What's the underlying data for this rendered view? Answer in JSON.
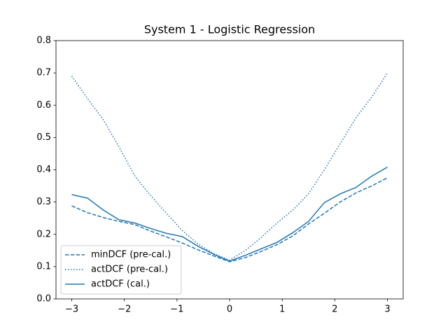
{
  "chart_data": {
    "type": "line",
    "title": "System 1 - Logistic Regression",
    "x": [
      -3,
      -2.7,
      -2.4,
      -2.1,
      -1.8,
      -1.5,
      -1.2,
      -0.9,
      -0.6,
      -0.3,
      0,
      0.3,
      0.6,
      0.9,
      1.2,
      1.5,
      1.8,
      2.1,
      2.4,
      2.7,
      3
    ],
    "series": [
      {
        "name": "minDCF (pre-cal.)",
        "color": "#1f77b4",
        "dash": "dashed",
        "values": [
          0.288,
          0.267,
          0.252,
          0.24,
          0.23,
          0.21,
          0.192,
          0.173,
          0.152,
          0.133,
          0.115,
          0.128,
          0.147,
          0.168,
          0.195,
          0.232,
          0.265,
          0.3,
          0.328,
          0.35,
          0.375
        ]
      },
      {
        "name": "actDCF (pre-cal.)",
        "color": "#1f77b4",
        "dash": "dotted",
        "values": [
          0.69,
          0.62,
          0.555,
          0.47,
          0.38,
          0.32,
          0.265,
          0.212,
          0.17,
          0.14,
          0.12,
          0.15,
          0.19,
          0.235,
          0.275,
          0.325,
          0.4,
          0.48,
          0.56,
          0.625,
          0.7
        ]
      },
      {
        "name": "actDCF (cal.)",
        "color": "#1f77b4",
        "dash": "solid",
        "values": [
          0.323,
          0.312,
          0.275,
          0.245,
          0.235,
          0.218,
          0.203,
          0.193,
          0.163,
          0.138,
          0.117,
          0.135,
          0.155,
          0.175,
          0.205,
          0.24,
          0.298,
          0.325,
          0.345,
          0.38,
          0.408
        ]
      }
    ],
    "xlim": [
      -3.3,
      3.3
    ],
    "xticks": [
      {
        "value": -3,
        "label": "−3"
      },
      {
        "value": -2,
        "label": "−2"
      },
      {
        "value": -1,
        "label": "−1"
      },
      0,
      1,
      2,
      3
    ],
    "ylim": [
      0,
      0.8
    ],
    "yticks": [
      {
        "value": 0,
        "label": "0.0"
      },
      0.1,
      0.2,
      0.3,
      0.4,
      0.5,
      0.6,
      0.7,
      0.8
    ],
    "grid": false,
    "legend": "lower left"
  }
}
